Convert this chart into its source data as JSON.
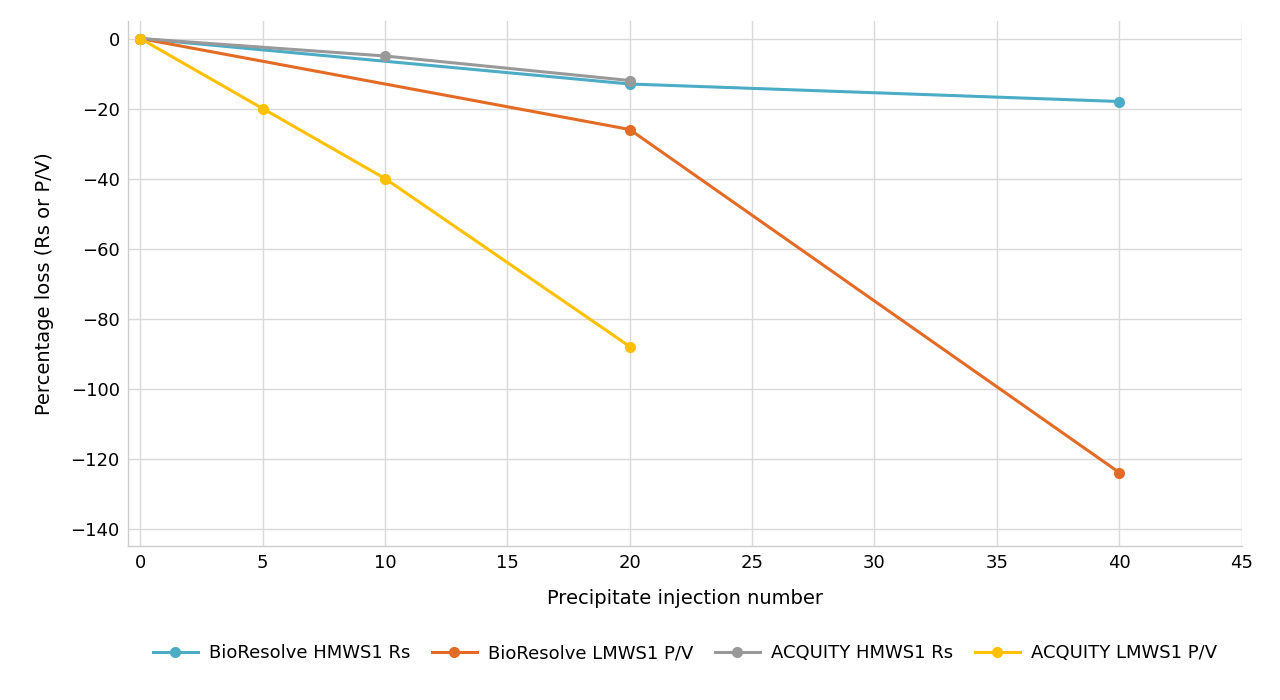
{
  "series": [
    {
      "label": "BioResolve HMWS1 Rs",
      "color": "#4BACC6",
      "x": [
        0,
        20,
        40
      ],
      "y": [
        0,
        -13,
        -18
      ],
      "marker": "o",
      "linewidth": 2.2,
      "markersize": 7
    },
    {
      "label": "BioResolve LMWS1 P/V",
      "color": "#E36B25",
      "x": [
        0,
        20,
        40
      ],
      "y": [
        0,
        -26,
        -124
      ],
      "marker": "o",
      "linewidth": 2.2,
      "markersize": 7
    },
    {
      "label": "ACQUITY HMWS1 Rs",
      "color": "#999999",
      "x": [
        0,
        10,
        20
      ],
      "y": [
        0,
        -5,
        -12
      ],
      "marker": "o",
      "linewidth": 2.2,
      "markersize": 7
    },
    {
      "label": "ACQUITY LMWS1 P/V",
      "color": "#FFC000",
      "x": [
        0,
        5,
        10,
        20
      ],
      "y": [
        0,
        -20,
        -40,
        -88
      ],
      "marker": "o",
      "linewidth": 2.2,
      "markersize": 7
    }
  ],
  "xlabel": "Precipitate injection number",
  "ylabel": "Percentage loss (Rs or P/V)",
  "xlim": [
    -0.5,
    44
  ],
  "ylim": [
    -145,
    5
  ],
  "xticks": [
    0,
    5,
    10,
    15,
    20,
    25,
    30,
    35,
    40,
    45
  ],
  "yticks": [
    0,
    -20,
    -40,
    -60,
    -80,
    -100,
    -120,
    -140
  ],
  "grid_color": "#D9D9D9",
  "background_color": "#FFFFFF",
  "axis_label_fontsize": 14,
  "tick_fontsize": 13,
  "legend_fontsize": 13,
  "spine_color": "#CCCCCC"
}
